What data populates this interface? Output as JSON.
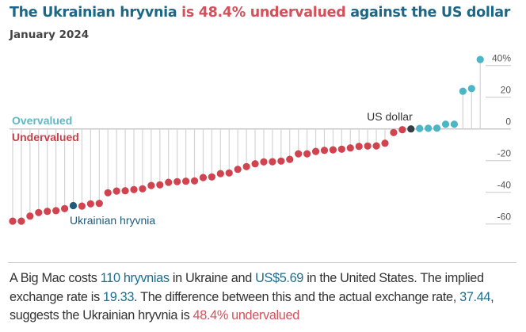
{
  "title": [
    {
      "text": "The Ukrainian hryvnia ",
      "color": "#1c6788"
    },
    {
      "text": "is 48.4% undervalued",
      "color": "#d4515b"
    },
    {
      "text": " against the US dollar",
      "color": "#1c6788"
    }
  ],
  "subtitle": "January 2024",
  "colors": {
    "undervalued": "#d0434f",
    "overvalued": "#4bb6c6",
    "highlight_ukraine": "#1d5a7c",
    "us_dollar": "#333d44",
    "stem": "#d4d4d4",
    "grid": "#c8c8c8"
  },
  "chart_data": {
    "type": "lollipop",
    "title": "The Ukrainian hryvnia is 48.4% undervalued against the US dollar",
    "subtitle": "January 2024",
    "ylim": [
      -60,
      45
    ],
    "yticks": [
      40,
      20,
      0,
      -20,
      -40,
      -60
    ],
    "ytick_labels": [
      "40%",
      "20",
      "0",
      "-20",
      "-40",
      "-60"
    ],
    "region_labels": {
      "above": "Overvalued",
      "below": "Undervalued"
    },
    "annotations": [
      {
        "label": "Ukrainian hryvnia",
        "index": 7
      },
      {
        "label": "US dollar",
        "index": 46
      }
    ],
    "values": [
      -58.2,
      -58.2,
      -55.0,
      -52.8,
      -52.0,
      -51.6,
      -50.3,
      -48.4,
      -48.7,
      -47.3,
      -47.0,
      -40.3,
      -39.2,
      -39.0,
      -38.3,
      -37.8,
      -35.7,
      -35.3,
      -33.7,
      -33.3,
      -33.0,
      -32.8,
      -30.7,
      -30.3,
      -28.2,
      -27.8,
      -25.5,
      -23.8,
      -22.0,
      -20.8,
      -20.7,
      -20.3,
      -19.2,
      -15.7,
      -15.7,
      -14.2,
      -13.5,
      -13.2,
      -12.8,
      -12.0,
      -11.0,
      -10.8,
      -10.7,
      -9.0,
      -2.3,
      -0.5,
      0,
      0.3,
      0.4,
      0.5,
      3.0,
      3.0,
      23.8,
      25.5,
      43.8
    ]
  },
  "paragraph": [
    {
      "text": "A Big Mac costs ",
      "color": "#333"
    },
    {
      "text": "110 hryvnias",
      "color": "#1c6f8c"
    },
    {
      "text": " in Ukraine and ",
      "color": "#333"
    },
    {
      "text": "US$5.69",
      "color": "#1c6f8c"
    },
    {
      "text": " in the United States. The implied exchange rate is ",
      "color": "#333"
    },
    {
      "text": "19.33",
      "color": "#1c6f8c"
    },
    {
      "text": ". The difference between this and the actual exchange rate, ",
      "color": "#333"
    },
    {
      "text": "37.44",
      "color": "#1c6f8c"
    },
    {
      "text": ", suggests the Ukrainian hryvnia is ",
      "color": "#333"
    },
    {
      "text": "48.4% undervalued",
      "color": "#d4515b"
    }
  ]
}
